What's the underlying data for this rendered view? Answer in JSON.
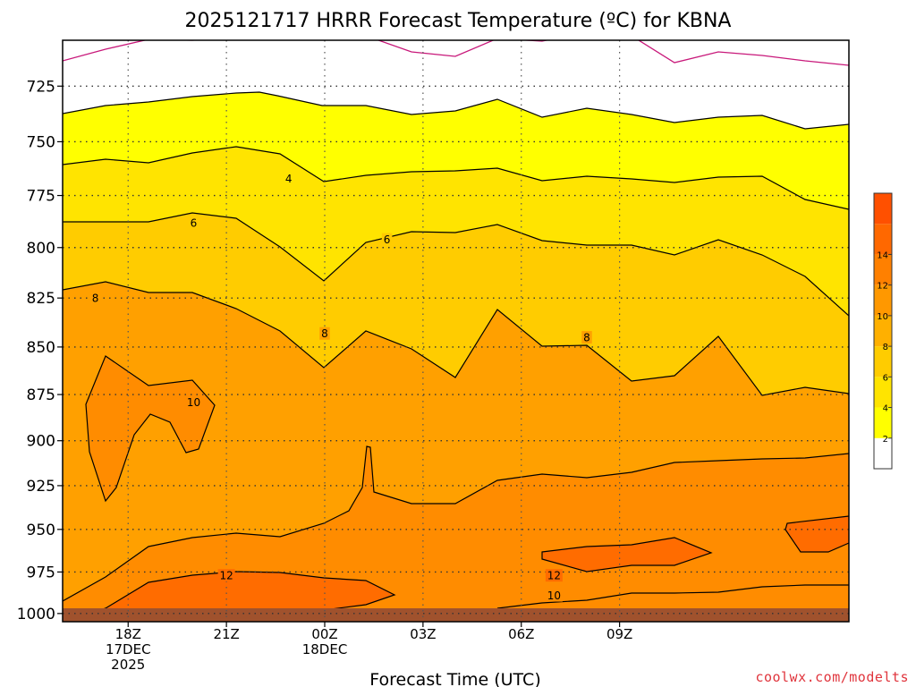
{
  "chart_data": {
    "type": "contour",
    "title": "2025121717 HRRR Forecast Temperature (ºC) for KBNA",
    "xlabel": "Forecast Time (UTC)",
    "ylabel": "",
    "credit": "coolwx.com/modelts",
    "y_axis": {
      "scale": "log-pressure",
      "range": [
        1005,
        705
      ],
      "ticks": [
        725,
        750,
        775,
        800,
        825,
        850,
        875,
        900,
        925,
        950,
        975,
        1000
      ],
      "grid": true
    },
    "x_axis": {
      "range_hours": [
        -1,
        23
      ],
      "ticks": [
        {
          "h": 1,
          "lines": [
            "18Z",
            "17DEC",
            "2025"
          ]
        },
        {
          "h": 4,
          "lines": [
            "21Z"
          ]
        },
        {
          "h": 7,
          "lines": [
            "00Z",
            "18DEC"
          ]
        },
        {
          "h": 10,
          "lines": [
            "03Z"
          ]
        },
        {
          "h": 13,
          "lines": [
            "06Z"
          ]
        },
        {
          "h": 16,
          "lines": [
            "09Z"
          ]
        }
      ],
      "grid": true
    },
    "colorbar": {
      "ticks": [
        2,
        4,
        6,
        8,
        10,
        12,
        14
      ],
      "colors": [
        "#ffffff",
        "#ffff00",
        "#ffe400",
        "#ffcc00",
        "#ffb000",
        "#ff9800",
        "#ff8000",
        "#ff6800",
        "#ff5000"
      ]
    },
    "fills": {
      "below_2": "#ffffff",
      "2_4": "#ffff00",
      "4_6": "#ffe400",
      "6_8": "#ffcc00",
      "8_10": "#ffa000",
      "10_12": "#ff8c00",
      "12_14": "#ff6c00",
      "14_16": "#ff5000",
      "ground": "#a0522d"
    },
    "contour_labels": [
      {
        "text": "4",
        "h": 5.9,
        "p": 767
      },
      {
        "text": "6",
        "h": 3.0,
        "p": 788
      },
      {
        "text": "6",
        "h": 8.9,
        "p": 796
      },
      {
        "text": "8",
        "h": 0.0,
        "p": 825
      },
      {
        "text": "8",
        "h": 7.0,
        "p": 843
      },
      {
        "text": "8",
        "h": 15.0,
        "p": 845
      },
      {
        "text": "10",
        "h": 3.0,
        "p": 879
      },
      {
        "text": "12",
        "h": 4.0,
        "p": 977
      },
      {
        "text": "12",
        "h": 14.0,
        "p": 977
      },
      {
        "text": "10",
        "h": 14.0,
        "p": 989
      }
    ]
  }
}
